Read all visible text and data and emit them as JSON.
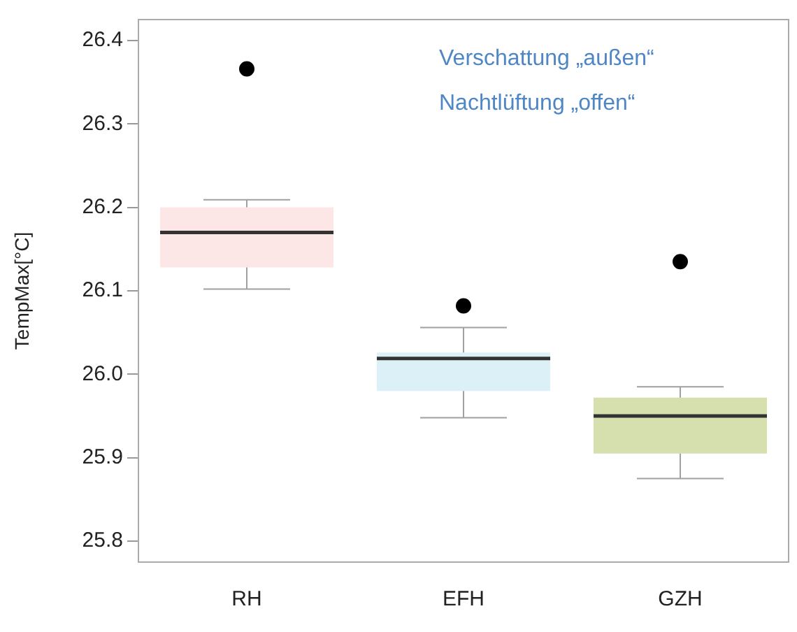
{
  "chart_data": {
    "type": "box",
    "ylabel": "TempMax[°C]",
    "categories": [
      "RH",
      "EFH",
      "GZH"
    ],
    "boxes": [
      {
        "low": 26.102,
        "q1": 26.128,
        "median": 26.17,
        "q3": 26.2,
        "high": 26.209,
        "outliers": [
          26.366
        ]
      },
      {
        "low": 25.948,
        "q1": 25.98,
        "median": 26.019,
        "q3": 26.026,
        "high": 26.056,
        "outliers": [
          26.082
        ]
      },
      {
        "low": 25.875,
        "q1": 25.905,
        "median": 25.95,
        "q3": 25.972,
        "high": 25.985,
        "outliers": [
          26.135
        ]
      }
    ],
    "colors": [
      "#fde6e6",
      "#dcf0f8",
      "#d6dfae"
    ],
    "ylim": [
      25.775,
      26.425
    ],
    "yticks": [
      25.8,
      25.9,
      {
        "value": 26,
        "label": "26.0"
      },
      26.1,
      26.2,
      26.3,
      26.4
    ],
    "annotations": [
      "Verschattung „außen“",
      "Nachtlüftung „offen“"
    ],
    "grid": false,
    "legend": false
  }
}
